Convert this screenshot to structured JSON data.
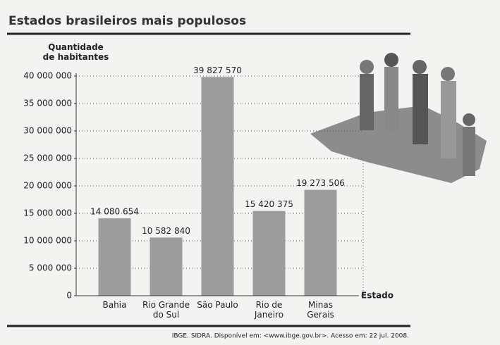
{
  "chart_data": {
    "type": "bar",
    "title": "Estados brasileiros mais populosos",
    "y_label": "Quantidade de habitantes",
    "x_label": "Estado",
    "source": "IBGE. SIDRA. Disponível em: <www.ibge.gov.br>. Acesso em: 22 jul. 2008.",
    "categories": [
      "Bahia",
      "Rio Grande do Sul",
      "São Paulo",
      "Rio de Janeiro",
      "Minas Gerais"
    ],
    "values": [
      14080654,
      10582840,
      39827570,
      15420375,
      19273506
    ],
    "value_labels": [
      "14 080 654",
      "10 582 840",
      "39 827 570",
      "15 420 375",
      "19 273 506"
    ],
    "color": "#9c9c9c",
    "ylim": [
      0,
      40000000
    ],
    "yticks": [
      0,
      {
        "value": 5000000,
        "label": "5 000 000"
      },
      {
        "value": 10000000,
        "label": "10 000 000"
      },
      {
        "value": 15000000,
        "label": "15 000 000"
      },
      {
        "value": 20000000,
        "label": "20 000 000"
      },
      {
        "value": 25000000,
        "label": "25 000 000"
      },
      {
        "value": 30000000,
        "label": "30 000 000"
      },
      {
        "value": 35000000,
        "label": "35 000 000"
      },
      {
        "value": 40000000,
        "label": "40 000 000"
      }
    ],
    "grid": true
  }
}
